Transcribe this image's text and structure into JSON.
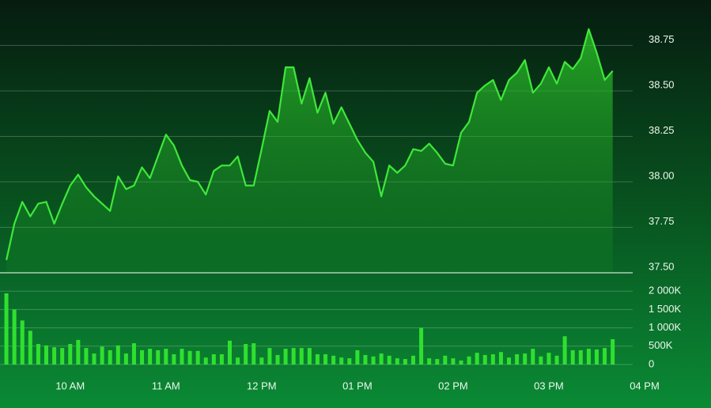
{
  "chart_data": [
    {
      "type": "area",
      "color": "#3ee83a",
      "grid": true,
      "x": [
        560,
        565,
        570,
        575,
        580,
        585,
        590,
        595,
        600,
        605,
        610,
        615,
        620,
        625,
        630,
        635,
        640,
        645,
        650,
        655,
        660,
        665,
        670,
        675,
        680,
        685,
        690,
        695,
        700,
        705,
        710,
        715,
        720,
        725,
        730,
        735,
        740,
        745,
        750,
        755,
        760,
        765,
        770,
        775,
        780,
        785,
        790,
        795,
        800,
        805,
        810,
        815,
        820,
        825,
        830,
        835,
        840,
        845,
        850,
        855,
        860,
        865,
        870,
        875,
        880,
        885,
        890,
        895,
        900,
        905,
        910,
        915,
        920,
        925,
        930,
        935,
        940
      ],
      "values": [
        37.57,
        37.77,
        37.89,
        37.81,
        37.88,
        37.89,
        37.77,
        37.88,
        37.98,
        38.04,
        37.97,
        37.92,
        37.88,
        37.84,
        38.03,
        37.96,
        37.98,
        38.08,
        38.02,
        38.14,
        38.26,
        38.2,
        38.09,
        38.01,
        38.0,
        37.93,
        38.06,
        38.09,
        38.09,
        38.14,
        37.98,
        37.98,
        38.18,
        38.39,
        38.33,
        38.63,
        38.63,
        38.43,
        38.57,
        38.38,
        38.49,
        38.32,
        38.41,
        38.32,
        38.23,
        38.16,
        38.11,
        37.92,
        38.09,
        38.05,
        38.09,
        38.18,
        38.17,
        38.21,
        38.16,
        38.1,
        38.09,
        38.27,
        38.33,
        38.49,
        38.53,
        38.56,
        38.45,
        38.56,
        38.6,
        38.67,
        38.49,
        38.54,
        38.63,
        38.54,
        38.66,
        38.62,
        38.68,
        38.84,
        38.71,
        38.56,
        38.61
      ],
      "ylim": [
        37.5,
        39.0
      ],
      "yticks": [
        {
          "value": 37.5,
          "label": "37.50"
        },
        37.75,
        {
          "value": 38,
          "label": "38.00"
        },
        38.25,
        {
          "value": 38.5,
          "label": "38.50"
        },
        38.75
      ]
    },
    {
      "type": "bar",
      "color": "#2fe02f",
      "grid": true,
      "x": [
        560,
        565,
        570,
        575,
        580,
        585,
        590,
        595,
        600,
        605,
        610,
        615,
        620,
        625,
        630,
        635,
        640,
        645,
        650,
        655,
        660,
        665,
        670,
        675,
        680,
        685,
        690,
        695,
        700,
        705,
        710,
        715,
        720,
        725,
        730,
        735,
        740,
        745,
        750,
        755,
        760,
        765,
        770,
        775,
        780,
        785,
        790,
        795,
        800,
        805,
        810,
        815,
        820,
        825,
        830,
        835,
        840,
        845,
        850,
        855,
        860,
        865,
        870,
        875,
        880,
        885,
        890,
        895,
        900,
        905,
        910,
        915,
        920,
        925,
        930,
        935,
        940
      ],
      "values": [
        1940000,
        1500000,
        1200000,
        920000,
        560000,
        520000,
        470000,
        450000,
        560000,
        670000,
        450000,
        300000,
        490000,
        390000,
        520000,
        300000,
        580000,
        390000,
        430000,
        390000,
        430000,
        280000,
        430000,
        370000,
        370000,
        190000,
        280000,
        280000,
        650000,
        190000,
        560000,
        580000,
        190000,
        450000,
        260000,
        430000,
        450000,
        450000,
        450000,
        280000,
        280000,
        240000,
        190000,
        170000,
        390000,
        260000,
        220000,
        300000,
        240000,
        170000,
        150000,
        240000,
        1000000,
        170000,
        150000,
        240000,
        170000,
        110000,
        220000,
        320000,
        260000,
        280000,
        340000,
        190000,
        280000,
        300000,
        430000,
        220000,
        320000,
        240000,
        770000,
        390000,
        390000,
        430000,
        410000,
        450000,
        690000
      ],
      "ylim": [
        0,
        2500000
      ],
      "yticks": [
        0,
        {
          "value": 500000,
          "label": "500K"
        },
        {
          "value": 1000000,
          "label": "1 000K"
        },
        {
          "value": 1500000,
          "label": "1 500K"
        },
        {
          "value": 2000000,
          "label": "2 000K"
        }
      ],
      "xlim": [
        556,
        960
      ],
      "xticks": [
        {
          "value": 600,
          "label": "10 AM"
        },
        {
          "value": 660,
          "label": "11 AM"
        },
        {
          "value": 720,
          "label": "12 PM"
        },
        {
          "value": 780,
          "label": "01 PM"
        },
        {
          "value": 840,
          "label": "02 PM"
        },
        {
          "value": 900,
          "label": "03 PM"
        },
        {
          "value": 960,
          "label": "04 PM"
        }
      ]
    }
  ]
}
